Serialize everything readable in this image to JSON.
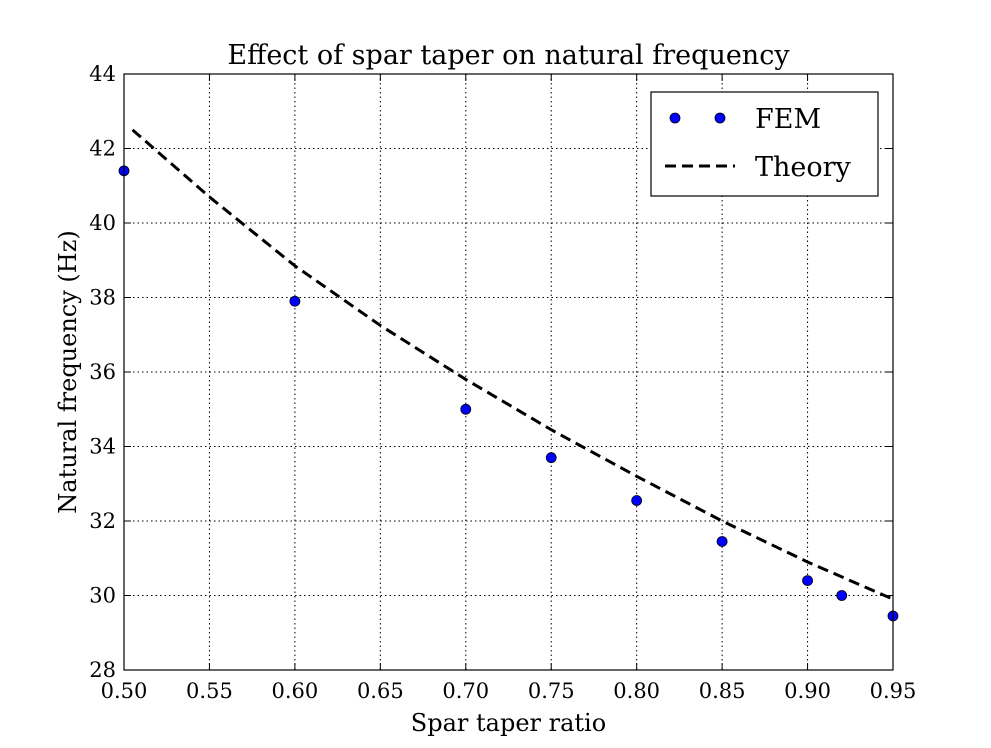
{
  "chart_data": {
    "type": "scatter",
    "title": "Effect of spar taper on natural frequency",
    "xlabel": "Spar taper ratio",
    "ylabel": "Natural frequency (Hz)",
    "xlim": [
      0.5,
      0.95
    ],
    "ylim": [
      28,
      44
    ],
    "xticks": [
      "0.50",
      "0.55",
      "0.60",
      "0.65",
      "0.70",
      "0.75",
      "0.80",
      "0.85",
      "0.90",
      "0.95"
    ],
    "yticks": [
      "28",
      "30",
      "32",
      "34",
      "36",
      "38",
      "40",
      "42",
      "44"
    ],
    "grid": true,
    "legend_position": "top-right",
    "series": [
      {
        "name": "FEM",
        "style": "markers",
        "color": "#0000ff",
        "x": [
          0.5,
          0.6,
          0.7,
          0.75,
          0.8,
          0.85,
          0.9,
          0.92,
          0.95
        ],
        "y": [
          41.4,
          37.9,
          35.0,
          33.7,
          32.55,
          31.45,
          30.4,
          30.0,
          29.45
        ]
      },
      {
        "name": "Theory",
        "style": "dashed-line",
        "color": "#000000",
        "x": [
          0.505,
          0.55,
          0.6,
          0.65,
          0.7,
          0.75,
          0.8,
          0.85,
          0.9,
          0.95
        ],
        "y": [
          42.5,
          40.7,
          38.85,
          37.25,
          35.8,
          34.45,
          33.2,
          32.0,
          30.9,
          29.9
        ]
      }
    ]
  }
}
